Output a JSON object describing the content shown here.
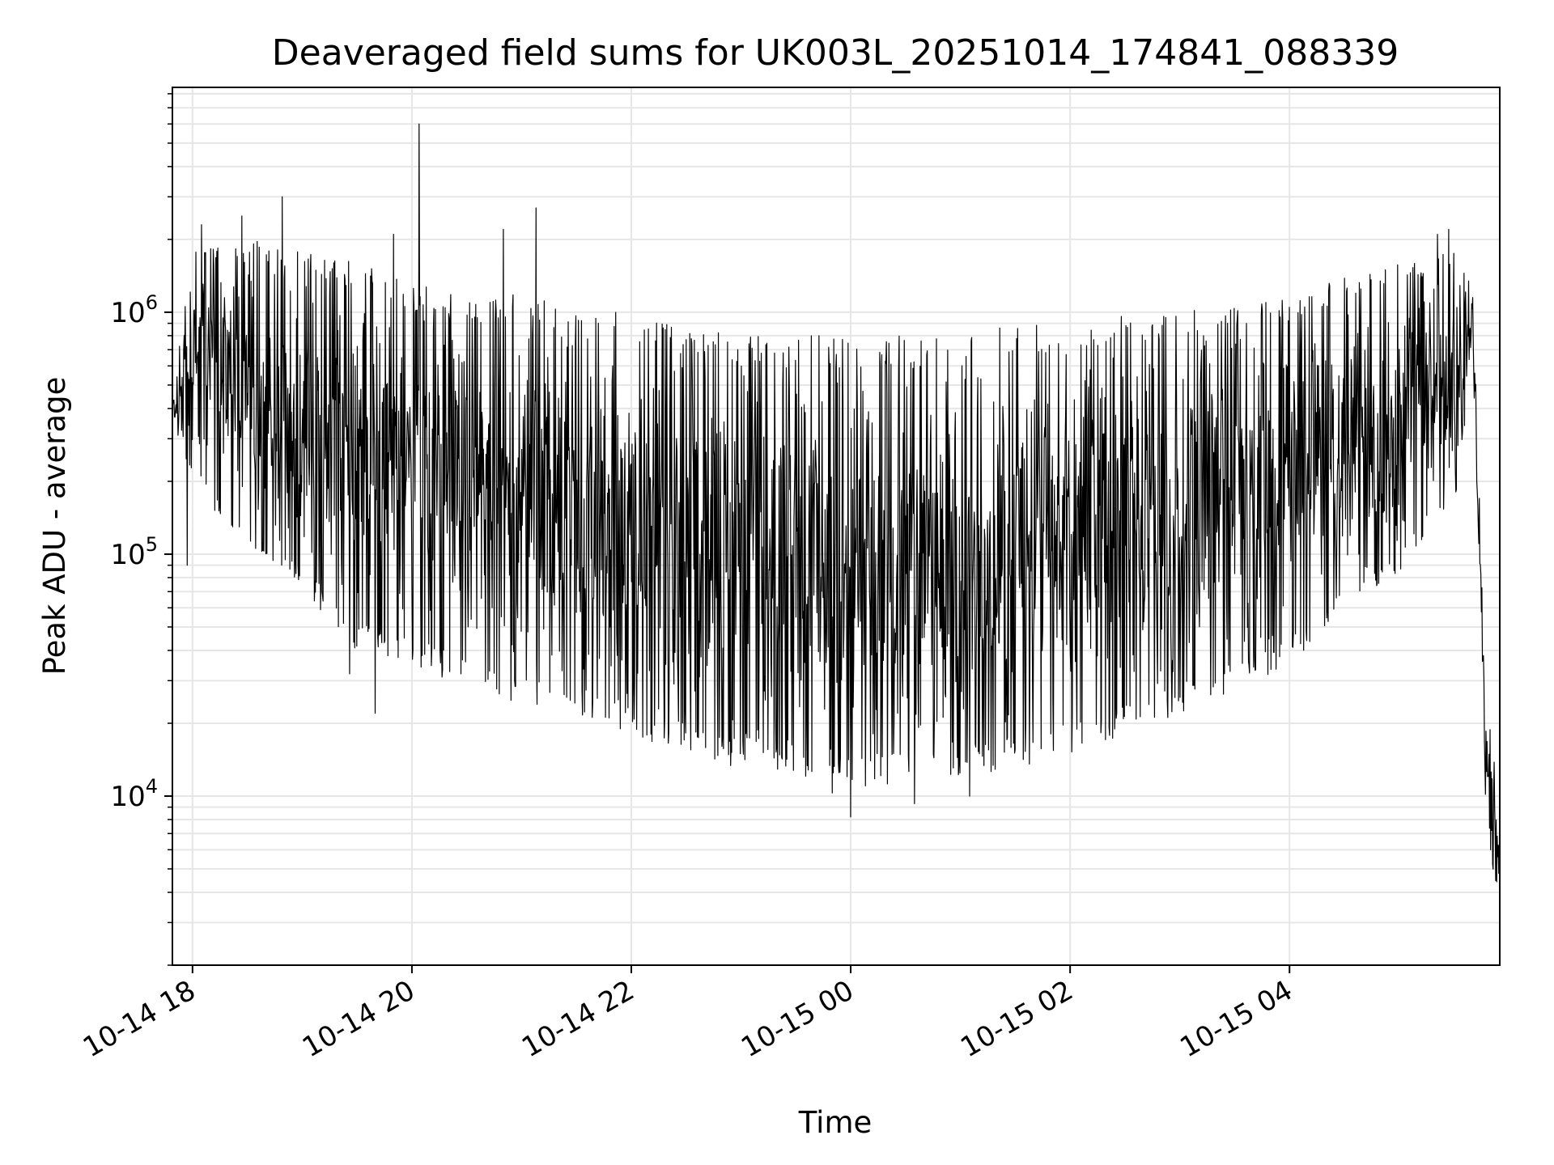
{
  "chart_data": {
    "type": "line",
    "title": "Deaveraged field sums for UK003L_20251014_174841_088339",
    "xlabel": "Time",
    "ylabel": "Peak ADU - average",
    "y_scale": "log",
    "grid": true,
    "xlim": [
      "2025-10-14 17:49",
      "2025-10-15 05:55"
    ],
    "ylim": [
      2000,
      8500000
    ],
    "x_ticks": [
      "10-14 18",
      "10-14 20",
      "10-14 22",
      "10-15 00",
      "10-15 02",
      "10-15 04"
    ],
    "y_ticks": [
      {
        "value": 10000,
        "base": "10",
        "exp": "4"
      },
      {
        "value": 100000,
        "base": "10",
        "exp": "5"
      },
      {
        "value": 1000000,
        "base": "10",
        "exp": "6"
      }
    ],
    "series": [
      {
        "color": "#000000",
        "envelope_points": [
          {
            "x": "2025-10-14 17:49",
            "y_upper": 450000,
            "y_lower": 350000
          },
          {
            "x": "2025-10-14 18:00",
            "y_upper": 1800000,
            "y_lower": 200000
          },
          {
            "x": "2025-10-14 18:30",
            "y_upper": 2000000,
            "y_lower": 100000
          },
          {
            "x": "2025-10-14 19:00",
            "y_upper": 1800000,
            "y_lower": 70000
          },
          {
            "x": "2025-10-14 19:30",
            "y_upper": 1600000,
            "y_lower": 40000
          },
          {
            "x": "2025-10-14 20:00",
            "y_upper": 1300000,
            "y_lower": 35000
          },
          {
            "x": "2025-10-14 20:30",
            "y_upper": 1200000,
            "y_lower": 28000
          },
          {
            "x": "2025-10-14 21:00",
            "y_upper": 1200000,
            "y_lower": 24000
          },
          {
            "x": "2025-10-14 21:30",
            "y_upper": 1100000,
            "y_lower": 21000
          },
          {
            "x": "2025-10-14 22:00",
            "y_upper": 1000000,
            "y_lower": 18000
          },
          {
            "x": "2025-10-14 22:30",
            "y_upper": 900000,
            "y_lower": 15000
          },
          {
            "x": "2025-10-14 23:00",
            "y_upper": 800000,
            "y_lower": 13000
          },
          {
            "x": "2025-10-14 23:30",
            "y_upper": 800000,
            "y_lower": 12000
          },
          {
            "x": "2025-10-15 00:00",
            "y_upper": 800000,
            "y_lower": 11000
          },
          {
            "x": "2025-10-15 00:30",
            "y_upper": 800000,
            "y_lower": 11000
          },
          {
            "x": "2025-10-15 01:00",
            "y_upper": 800000,
            "y_lower": 12000
          },
          {
            "x": "2025-10-15 01:30",
            "y_upper": 900000,
            "y_lower": 13000
          },
          {
            "x": "2025-10-15 02:00",
            "y_upper": 900000,
            "y_lower": 15000
          },
          {
            "x": "2025-10-15 02:30",
            "y_upper": 1000000,
            "y_lower": 18000
          },
          {
            "x": "2025-10-15 03:00",
            "y_upper": 1000000,
            "y_lower": 22000
          },
          {
            "x": "2025-10-15 03:30",
            "y_upper": 1100000,
            "y_lower": 27000
          },
          {
            "x": "2025-10-15 04:00",
            "y_upper": 1200000,
            "y_lower": 35000
          },
          {
            "x": "2025-10-15 04:30",
            "y_upper": 1400000,
            "y_lower": 55000
          },
          {
            "x": "2025-10-15 05:00",
            "y_upper": 1600000,
            "y_lower": 85000
          },
          {
            "x": "2025-10-15 05:30",
            "y_upper": 1800000,
            "y_lower": 150000
          },
          {
            "x": "2025-10-15 05:40",
            "y_upper": 1300000,
            "y_lower": 600000
          },
          {
            "x": "2025-10-15 05:43",
            "y_upper": 300000,
            "y_lower": 150000
          },
          {
            "x": "2025-10-15 05:47",
            "y_upper": 25000,
            "y_lower": 10000
          },
          {
            "x": "2025-10-15 05:51",
            "y_upper": 18000,
            "y_lower": 5000
          },
          {
            "x": "2025-10-15 05:55",
            "y_upper": 6000,
            "y_lower": 3300
          }
        ],
        "spikes": [
          {
            "x": "2025-10-14 20:04",
            "y": 6000000
          },
          {
            "x": "2025-10-14 18:49",
            "y": 3000000
          },
          {
            "x": "2025-10-14 21:08",
            "y": 2700000
          },
          {
            "x": "2025-10-14 18:05",
            "y": 2300000
          },
          {
            "x": "2025-10-14 18:27",
            "y": 2500000
          },
          {
            "x": "2025-10-14 20:50",
            "y": 2200000
          },
          {
            "x": "2025-10-14 19:50",
            "y": 2100000
          },
          {
            "x": "2025-10-15 05:21",
            "y": 2100000
          },
          {
            "x": "2025-10-15 05:27",
            "y": 2200000
          },
          {
            "x": "2025-10-14 17:57",
            "y": 90000
          },
          {
            "x": "2025-10-14 19:26",
            "y": 32000
          },
          {
            "x": "2025-10-14 19:40",
            "y": 22000
          },
          {
            "x": "2025-10-14 23:50",
            "y": 10300
          },
          {
            "x": "2025-10-15 00:00",
            "y": 8200
          },
          {
            "x": "2025-10-15 00:35",
            "y": 9300
          },
          {
            "x": "2025-10-15 01:05",
            "y": 10000
          }
        ]
      }
    ]
  }
}
